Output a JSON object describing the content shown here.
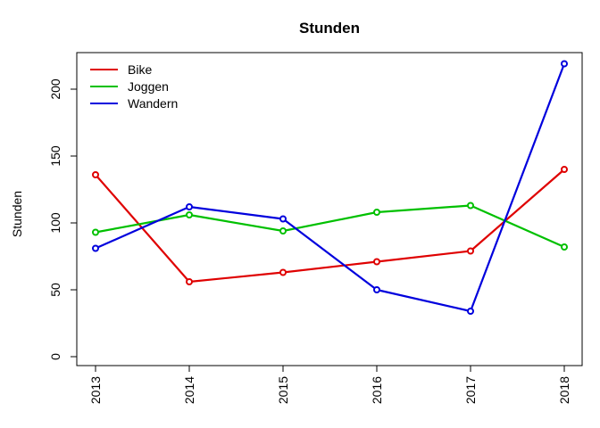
{
  "chart_data": {
    "type": "line",
    "title": "Stunden",
    "xlabel": "",
    "ylabel": "Stunden",
    "categories": [
      "2013",
      "2014",
      "2015",
      "2016",
      "2017",
      "2018"
    ],
    "ylim": [
      0,
      220
    ],
    "yticks": [
      0,
      50,
      100,
      150,
      200
    ],
    "grid": false,
    "legend_position": "top-left",
    "series": [
      {
        "name": "Bike",
        "color": "#DF0000",
        "values": [
          136,
          56,
          63,
          71,
          79,
          140
        ]
      },
      {
        "name": "Joggen",
        "color": "#00C000",
        "values": [
          93,
          106,
          94,
          108,
          113,
          82
        ]
      },
      {
        "name": "Wandern",
        "color": "#0000DD",
        "values": [
          81,
          112,
          103,
          50,
          34,
          219
        ]
      }
    ]
  }
}
